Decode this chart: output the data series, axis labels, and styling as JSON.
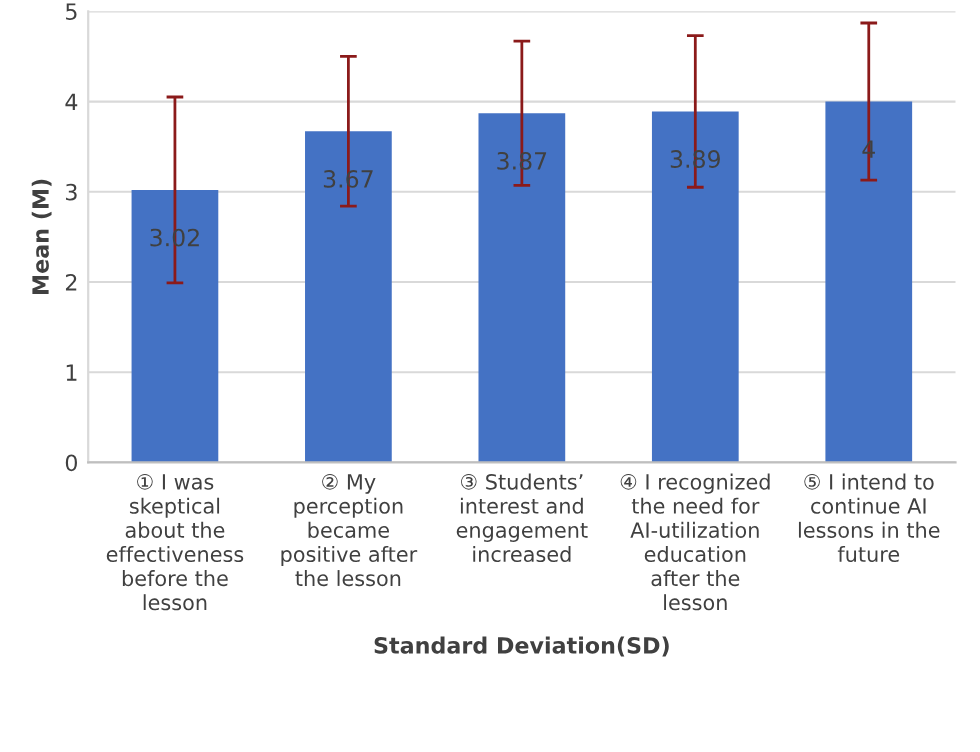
{
  "chart_data": {
    "type": "bar",
    "xlabel": "Standard Deviation(SD)",
    "ylabel": "Mean (M)",
    "categories": [
      "① I was skeptical about the effectiveness before the lesson",
      "② My perception became positive after the lesson",
      "③ Students’ interest and engagement increased",
      "④ I recognized the need for AI-utilization education after the lesson",
      "⑤ I intend to continue AI lessons in the future"
    ],
    "values": [
      3.02,
      3.67,
      3.87,
      3.89,
      4
    ],
    "errors": [
      1.03,
      0.83,
      0.8,
      0.84,
      0.87
    ],
    "color": "#4472c4",
    "ylim": [
      0,
      5
    ],
    "yticks": [
      0,
      1,
      2,
      3,
      4,
      5
    ],
    "grid": "y",
    "data_labels": true
  }
}
